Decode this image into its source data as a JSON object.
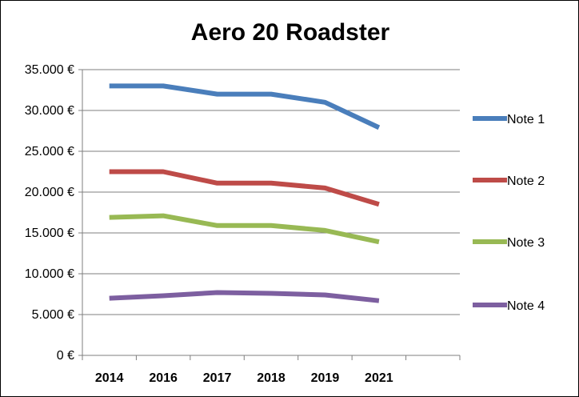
{
  "chart_data": {
    "type": "line",
    "title": "Aero 20 Roadster",
    "xlabel": "",
    "ylabel": "",
    "categories": [
      "2014",
      "2016",
      "2017",
      "2018",
      "2019",
      "2021"
    ],
    "ylim": [
      0,
      35000
    ],
    "y_ticks": [
      0,
      5000,
      10000,
      15000,
      20000,
      25000,
      30000,
      35000
    ],
    "y_tick_labels": [
      "0 €",
      "5.000 €",
      "10.000 €",
      "15.000 €",
      "20.000 €",
      "25.000 €",
      "30.000 €",
      "35.000 €"
    ],
    "grid": "horizontal",
    "legend_position": "right",
    "series": [
      {
        "name": "Note 1",
        "color": "#4a7ebb",
        "values": [
          33000,
          33000,
          32000,
          32000,
          31000,
          27900
        ]
      },
      {
        "name": "Note 2",
        "color": "#be4b48",
        "values": [
          22500,
          22500,
          21100,
          21100,
          20500,
          18500
        ]
      },
      {
        "name": "Note 3",
        "color": "#98b954",
        "values": [
          16900,
          17100,
          15900,
          15900,
          15300,
          13900
        ]
      },
      {
        "name": "Note 4",
        "color": "#7d5fa0",
        "values": [
          7000,
          7300,
          7700,
          7600,
          7400,
          6700
        ]
      }
    ]
  }
}
